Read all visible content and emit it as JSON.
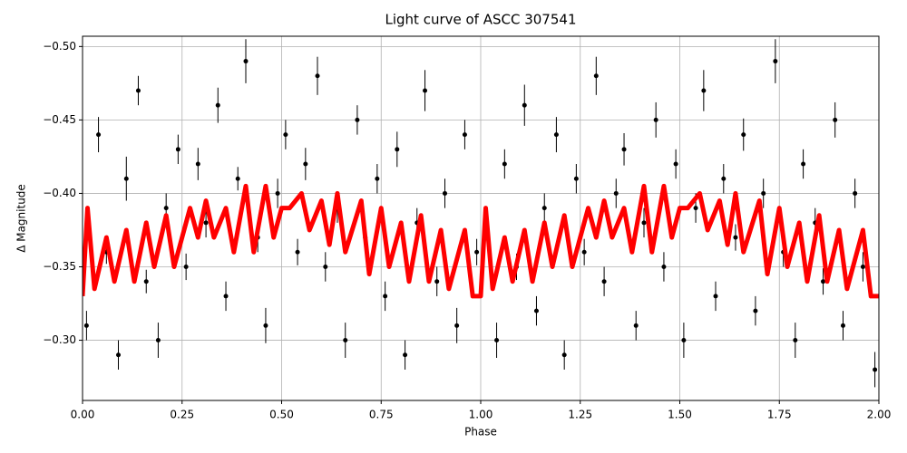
{
  "chart_data": {
    "type": "errorbar",
    "title": "Light curve of ASCC 307541",
    "xlabel": "Phase",
    "ylabel": "Δ Magnitude",
    "xlim": [
      0,
      2
    ],
    "ylim": [
      -0.259,
      -0.507
    ],
    "xticks": [
      {
        "value": 0,
        "label": "0.00"
      },
      {
        "value": 0.25,
        "label": "0.25"
      },
      {
        "value": 0.5,
        "label": "0.50"
      },
      {
        "value": 0.75,
        "label": "0.75"
      },
      {
        "value": 1,
        "label": "1.00"
      },
      {
        "value": 1.25,
        "label": "1.25"
      },
      {
        "value": 1.5,
        "label": "1.50"
      },
      {
        "value": 1.75,
        "label": "1.75"
      },
      {
        "value": 2,
        "label": "2.00"
      }
    ],
    "yticks": [
      {
        "value": -0.5,
        "label": "−0.50"
      },
      {
        "value": -0.45,
        "label": "−0.45"
      },
      {
        "value": -0.4,
        "label": "−0.40"
      },
      {
        "value": -0.35,
        "label": "−0.35"
      },
      {
        "value": -0.3,
        "label": "−0.30"
      }
    ],
    "grid": true,
    "points": {
      "color": "#000000",
      "x": [
        0.01,
        0.04,
        0.06,
        0.09,
        0.11,
        0.14,
        0.16,
        0.19,
        0.21,
        0.24,
        0.26,
        0.29,
        0.31,
        0.34,
        0.36,
        0.39,
        0.41,
        0.44,
        0.46,
        0.49,
        0.51,
        0.54,
        0.56,
        0.59,
        0.61,
        0.64,
        0.66,
        0.69,
        0.71,
        0.74,
        0.76,
        0.79,
        0.81,
        0.84,
        0.86,
        0.89,
        0.91,
        0.94,
        0.96,
        0.99,
        1.01,
        1.04,
        1.06,
        1.09,
        1.11,
        1.14,
        1.16,
        1.19,
        1.21,
        1.24,
        1.26,
        1.29,
        1.31,
        1.34,
        1.36,
        1.39,
        1.41,
        1.44,
        1.46,
        1.49,
        1.51,
        1.54,
        1.56,
        1.59,
        1.61,
        1.64,
        1.66,
        1.69,
        1.71,
        1.74,
        1.76,
        1.79,
        1.81,
        1.84,
        1.86,
        1.89,
        1.91,
        1.94,
        1.96,
        1.99
      ],
      "values": [
        -0.31,
        -0.44,
        -0.36,
        -0.29,
        -0.41,
        -0.47,
        -0.34,
        -0.3,
        -0.39,
        -0.43,
        -0.35,
        -0.42,
        -0.38,
        -0.46,
        -0.33,
        -0.41,
        -0.49,
        -0.37,
        -0.31,
        -0.4,
        -0.44,
        -0.36,
        -0.42,
        -0.48,
        -0.35,
        -0.39,
        -0.3,
        -0.45,
        -0.37,
        -0.41,
        -0.33,
        -0.43,
        -0.29,
        -0.38,
        -0.47,
        -0.34,
        -0.4,
        -0.31,
        -0.44,
        -0.36,
        -0.37,
        -0.3,
        -0.42,
        -0.35,
        -0.46,
        -0.32,
        -0.39,
        -0.44,
        -0.29,
        -0.41,
        -0.36,
        -0.48,
        -0.34,
        -0.4,
        -0.43,
        -0.31,
        -0.38,
        -0.45,
        -0.35,
        -0.42,
        -0.3,
        -0.39,
        -0.47,
        -0.33,
        -0.41,
        -0.37,
        -0.44,
        -0.32,
        -0.4,
        -0.49,
        -0.36,
        -0.3,
        -0.42,
        -0.38,
        -0.34,
        -0.45,
        -0.31,
        -0.4,
        -0.35,
        -0.28
      ],
      "errors": [
        0.01,
        0.012,
        0.008,
        0.01,
        0.015,
        0.01,
        0.008,
        0.012,
        0.01,
        0.01,
        0.009,
        0.011,
        0.01,
        0.012,
        0.01,
        0.008,
        0.015,
        0.01,
        0.012,
        0.01,
        0.01,
        0.009,
        0.011,
        0.013,
        0.01,
        0.01,
        0.012,
        0.01,
        0.008,
        0.01,
        0.01,
        0.012,
        0.01,
        0.01,
        0.014,
        0.01,
        0.01,
        0.012,
        0.01,
        0.009,
        0.01,
        0.012,
        0.01,
        0.009,
        0.014,
        0.01,
        0.01,
        0.012,
        0.01,
        0.01,
        0.009,
        0.013,
        0.01,
        0.01,
        0.011,
        0.01,
        0.01,
        0.012,
        0.01,
        0.01,
        0.012,
        0.01,
        0.014,
        0.01,
        0.01,
        0.009,
        0.011,
        0.01,
        0.01,
        0.015,
        0.01,
        0.012,
        0.01,
        0.01,
        0.009,
        0.012,
        0.01,
        0.01,
        0.01,
        0.012
      ]
    },
    "fit": {
      "color": "#ff0000",
      "x": [
        0,
        0.0125,
        0.03,
        0.06,
        0.08,
        0.11,
        0.13,
        0.16,
        0.18,
        0.21,
        0.23,
        0.27,
        0.29,
        0.31,
        0.33,
        0.36,
        0.38,
        0.41,
        0.43,
        0.46,
        0.48,
        0.5,
        0.52,
        0.55,
        0.57,
        0.6,
        0.62,
        0.64,
        0.66,
        0.7,
        0.72,
        0.75,
        0.77,
        0.8,
        0.82,
        0.85,
        0.87,
        0.9,
        0.92,
        0.96,
        0.98,
        1,
        1.0125,
        1.03,
        1.06,
        1.08,
        1.11,
        1.13,
        1.16,
        1.18,
        1.21,
        1.23,
        1.27,
        1.29,
        1.31,
        1.33,
        1.36,
        1.38,
        1.41,
        1.43,
        1.46,
        1.48,
        1.5,
        1.52,
        1.55,
        1.57,
        1.6,
        1.62,
        1.64,
        1.66,
        1.7,
        1.72,
        1.75,
        1.77,
        1.8,
        1.82,
        1.85,
        1.87,
        1.9,
        1.92,
        1.96,
        1.98,
        2
      ],
      "values": [
        -0.33,
        -0.39,
        -0.335,
        -0.37,
        -0.34,
        -0.375,
        -0.34,
        -0.38,
        -0.35,
        -0.385,
        -0.35,
        -0.39,
        -0.37,
        -0.395,
        -0.37,
        -0.39,
        -0.36,
        -0.405,
        -0.36,
        -0.405,
        -0.37,
        -0.39,
        -0.39,
        -0.4,
        -0.375,
        -0.395,
        -0.365,
        -0.4,
        -0.36,
        -0.395,
        -0.345,
        -0.39,
        -0.35,
        -0.38,
        -0.34,
        -0.385,
        -0.34,
        -0.375,
        -0.335,
        -0.375,
        -0.33,
        -0.33,
        -0.39,
        -0.335,
        -0.37,
        -0.34,
        -0.375,
        -0.34,
        -0.38,
        -0.35,
        -0.385,
        -0.35,
        -0.39,
        -0.37,
        -0.395,
        -0.37,
        -0.39,
        -0.36,
        -0.405,
        -0.36,
        -0.405,
        -0.37,
        -0.39,
        -0.39,
        -0.4,
        -0.375,
        -0.395,
        -0.365,
        -0.4,
        -0.36,
        -0.395,
        -0.345,
        -0.39,
        -0.35,
        -0.38,
        -0.34,
        -0.385,
        -0.34,
        -0.375,
        -0.335,
        -0.375,
        -0.33,
        -0.33
      ]
    }
  }
}
